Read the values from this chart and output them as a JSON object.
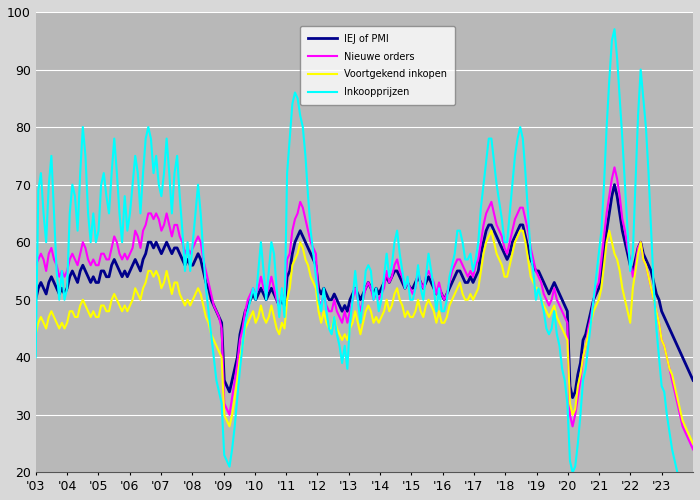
{
  "legend_labels": [
    "IEJ of PMI",
    "Nieuwe orders",
    "Voortgekend inkopen",
    "Inkoopprijzen"
  ],
  "colors": [
    "#00008B",
    "#FF00FF",
    "#FFFF00",
    "#00FFFF"
  ],
  "linewidths": [
    2.0,
    1.5,
    1.5,
    1.5
  ],
  "ylim": [
    20,
    100
  ],
  "yticks": [
    20,
    30,
    40,
    50,
    60,
    70,
    80,
    90,
    100
  ],
  "bg_color": "#B8B8B8",
  "outer_bg": "#D8D8D8",
  "grid_color": "#FFFFFF",
  "year_labels": [
    "'03",
    "'04",
    "'05",
    "'06",
    "'07",
    "'08",
    "'09",
    "'10",
    "'11",
    "'12",
    "'13",
    "'14",
    "'15",
    "'16",
    "'17",
    "'18",
    "'19",
    "'20",
    "'21",
    "'22",
    "'23"
  ],
  "pmi": [
    50,
    52,
    53,
    52,
    51,
    53,
    54,
    53,
    52,
    51,
    52,
    51,
    52,
    54,
    55,
    54,
    53,
    55,
    56,
    55,
    54,
    53,
    54,
    53,
    53,
    55,
    55,
    54,
    54,
    56,
    57,
    56,
    55,
    54,
    55,
    54,
    55,
    56,
    57,
    56,
    55,
    57,
    58,
    60,
    60,
    59,
    60,
    59,
    58,
    59,
    60,
    59,
    58,
    59,
    59,
    58,
    57,
    56,
    57,
    56,
    56,
    57,
    58,
    57,
    55,
    53,
    52,
    50,
    49,
    48,
    47,
    46,
    36,
    35,
    34,
    36,
    38,
    40,
    44,
    46,
    48,
    49,
    50,
    51,
    50,
    51,
    52,
    51,
    50,
    51,
    52,
    51,
    50,
    49,
    50,
    49,
    54,
    55,
    58,
    60,
    61,
    62,
    61,
    60,
    59,
    58,
    57,
    56,
    52,
    51,
    52,
    51,
    50,
    50,
    51,
    50,
    49,
    48,
    49,
    48,
    50,
    51,
    52,
    51,
    50,
    51,
    52,
    53,
    52,
    51,
    52,
    51,
    52,
    53,
    54,
    53,
    54,
    55,
    55,
    54,
    53,
    52,
    53,
    52,
    52,
    53,
    54,
    53,
    52,
    53,
    54,
    53,
    52,
    51,
    52,
    51,
    50,
    51,
    52,
    53,
    54,
    55,
    55,
    54,
    53,
    53,
    54,
    53,
    54,
    55,
    58,
    60,
    62,
    63,
    63,
    62,
    61,
    60,
    59,
    58,
    57,
    58,
    60,
    61,
    62,
    63,
    63,
    61,
    59,
    57,
    56,
    55,
    55,
    54,
    53,
    52,
    51,
    52,
    53,
    52,
    51,
    50,
    49,
    48,
    35,
    33,
    34,
    37,
    39,
    43,
    44,
    46,
    48,
    50,
    51,
    52,
    55,
    58,
    62,
    65,
    68,
    70,
    68,
    65,
    62,
    60,
    58,
    56,
    55,
    57,
    59,
    60,
    58,
    57,
    56,
    55,
    53,
    51,
    50,
    48,
    47,
    46,
    45,
    44,
    43,
    42,
    41,
    40,
    39,
    38,
    37,
    36
  ],
  "orders": [
    56,
    57,
    58,
    57,
    55,
    58,
    59,
    57,
    56,
    54,
    55,
    54,
    55,
    57,
    58,
    57,
    56,
    58,
    60,
    59,
    57,
    56,
    57,
    56,
    56,
    58,
    58,
    57,
    57,
    59,
    61,
    60,
    58,
    57,
    58,
    57,
    58,
    59,
    62,
    61,
    59,
    62,
    63,
    65,
    65,
    64,
    65,
    64,
    62,
    63,
    65,
    63,
    61,
    63,
    63,
    61,
    60,
    58,
    59,
    58,
    59,
    60,
    61,
    60,
    57,
    55,
    53,
    51,
    49,
    48,
    47,
    45,
    32,
    31,
    30,
    33,
    36,
    39,
    43,
    45,
    48,
    50,
    51,
    52,
    51,
    52,
    54,
    52,
    51,
    52,
    54,
    52,
    50,
    49,
    51,
    50,
    57,
    58,
    62,
    64,
    65,
    67,
    66,
    64,
    62,
    60,
    59,
    58,
    50,
    49,
    51,
    49,
    48,
    48,
    50,
    48,
    47,
    46,
    48,
    46,
    48,
    50,
    52,
    50,
    48,
    50,
    52,
    53,
    52,
    50,
    51,
    50,
    51,
    52,
    55,
    53,
    54,
    56,
    57,
    55,
    54,
    52,
    53,
    52,
    51,
    52,
    55,
    53,
    52,
    54,
    55,
    54,
    53,
    51,
    53,
    51,
    50,
    51,
    53,
    55,
    56,
    57,
    57,
    56,
    55,
    54,
    55,
    54,
    56,
    57,
    60,
    63,
    65,
    66,
    67,
    65,
    63,
    62,
    61,
    59,
    58,
    60,
    62,
    64,
    65,
    66,
    66,
    64,
    62,
    59,
    57,
    55,
    54,
    53,
    51,
    50,
    49,
    50,
    52,
    50,
    49,
    48,
    47,
    46,
    30,
    28,
    30,
    33,
    36,
    40,
    42,
    45,
    47,
    50,
    52,
    53,
    57,
    61,
    65,
    68,
    71,
    73,
    71,
    68,
    64,
    62,
    59,
    57,
    54,
    56,
    59,
    60,
    57,
    56,
    54,
    52,
    50,
    48,
    46,
    43,
    42,
    40,
    38,
    36,
    34,
    32,
    30,
    28,
    27,
    26,
    25,
    24
  ],
  "inkopen": [
    44,
    46,
    47,
    46,
    45,
    47,
    48,
    47,
    46,
    45,
    46,
    45,
    46,
    48,
    48,
    47,
    47,
    49,
    50,
    49,
    48,
    47,
    48,
    47,
    47,
    49,
    49,
    48,
    48,
    50,
    51,
    50,
    49,
    48,
    49,
    48,
    49,
    50,
    52,
    51,
    50,
    52,
    53,
    55,
    55,
    54,
    55,
    54,
    52,
    53,
    55,
    53,
    51,
    53,
    53,
    51,
    50,
    49,
    50,
    49,
    50,
    51,
    52,
    51,
    49,
    47,
    46,
    44,
    43,
    42,
    41,
    40,
    30,
    29,
    28,
    30,
    33,
    36,
    40,
    42,
    45,
    46,
    47,
    48,
    46,
    47,
    49,
    47,
    46,
    47,
    49,
    47,
    45,
    44,
    46,
    45,
    50,
    52,
    56,
    57,
    58,
    60,
    59,
    57,
    56,
    54,
    53,
    52,
    48,
    46,
    48,
    46,
    45,
    45,
    47,
    45,
    44,
    43,
    44,
    43,
    45,
    46,
    48,
    46,
    44,
    46,
    48,
    49,
    48,
    46,
    47,
    46,
    47,
    48,
    50,
    48,
    49,
    51,
    52,
    50,
    49,
    47,
    48,
    47,
    47,
    48,
    50,
    48,
    47,
    49,
    50,
    49,
    48,
    46,
    48,
    46,
    46,
    47,
    49,
    50,
    51,
    52,
    53,
    51,
    50,
    50,
    51,
    50,
    51,
    52,
    55,
    58,
    60,
    61,
    62,
    60,
    58,
    57,
    56,
    54,
    54,
    56,
    58,
    60,
    61,
    62,
    62,
    60,
    57,
    54,
    53,
    52,
    52,
    50,
    49,
    48,
    47,
    48,
    49,
    47,
    46,
    45,
    44,
    43,
    32,
    30,
    31,
    35,
    37,
    40,
    42,
    44,
    46,
    48,
    49,
    50,
    52,
    56,
    60,
    62,
    60,
    58,
    57,
    55,
    52,
    50,
    48,
    46,
    52,
    55,
    58,
    60,
    57,
    56,
    54,
    52,
    50,
    48,
    46,
    43,
    42,
    40,
    38,
    37,
    35,
    33,
    31,
    29,
    28,
    27,
    26,
    25
  ],
  "prijzen": [
    40,
    69,
    72,
    65,
    60,
    70,
    75,
    65,
    55,
    50,
    55,
    50,
    52,
    65,
    70,
    68,
    62,
    72,
    80,
    75,
    65,
    60,
    65,
    60,
    62,
    70,
    72,
    68,
    65,
    72,
    78,
    72,
    65,
    60,
    68,
    62,
    65,
    70,
    75,
    72,
    65,
    72,
    78,
    80,
    78,
    72,
    75,
    70,
    68,
    72,
    78,
    72,
    65,
    72,
    75,
    68,
    62,
    55,
    60,
    55,
    60,
    65,
    70,
    65,
    58,
    52,
    48,
    44,
    40,
    36,
    34,
    32,
    23,
    22,
    21,
    24,
    28,
    33,
    38,
    42,
    46,
    48,
    50,
    52,
    50,
    55,
    60,
    55,
    50,
    55,
    60,
    58,
    52,
    47,
    52,
    47,
    72,
    78,
    84,
    86,
    85,
    82,
    80,
    75,
    68,
    62,
    58,
    54,
    50,
    48,
    52,
    48,
    45,
    44,
    47,
    44,
    42,
    39,
    42,
    38,
    46,
    50,
    55,
    50,
    46,
    50,
    55,
    56,
    55,
    50,
    52,
    48,
    50,
    54,
    58,
    54,
    56,
    60,
    62,
    58,
    55,
    52,
    54,
    50,
    50,
    52,
    56,
    52,
    50,
    54,
    58,
    55,
    52,
    48,
    52,
    48,
    48,
    50,
    54,
    56,
    58,
    62,
    62,
    60,
    57,
    57,
    58,
    55,
    57,
    60,
    66,
    70,
    74,
    78,
    78,
    74,
    70,
    67,
    64,
    60,
    60,
    65,
    70,
    75,
    78,
    80,
    78,
    72,
    65,
    58,
    55,
    50,
    52,
    50,
    48,
    45,
    44,
    45,
    48,
    44,
    42,
    38,
    36,
    32,
    22,
    20,
    21,
    25,
    30,
    36,
    38,
    42,
    46,
    50,
    54,
    58,
    62,
    70,
    80,
    88,
    95,
    97,
    92,
    85,
    78,
    70,
    62,
    55,
    58,
    70,
    82,
    90,
    85,
    80,
    72,
    62,
    52,
    45,
    40,
    35,
    34,
    30,
    27,
    24,
    22,
    20,
    18,
    16,
    15,
    14,
    13,
    12
  ]
}
